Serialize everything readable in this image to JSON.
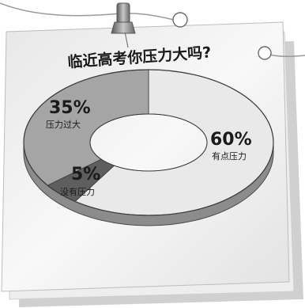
{
  "chart_data": {
    "type": "pie",
    "title": "临近高考你压力大吗?",
    "slices": [
      {
        "label": "有点压力",
        "value": 60,
        "value_text": "60%",
        "color": "#e9e9e9"
      },
      {
        "label": "压力过大",
        "value": 35,
        "value_text": "35%",
        "color": "#a5a5a5"
      },
      {
        "label": "没有压力",
        "value": 5,
        "value_text": "5%",
        "color": "#5e5e5e"
      }
    ]
  }
}
